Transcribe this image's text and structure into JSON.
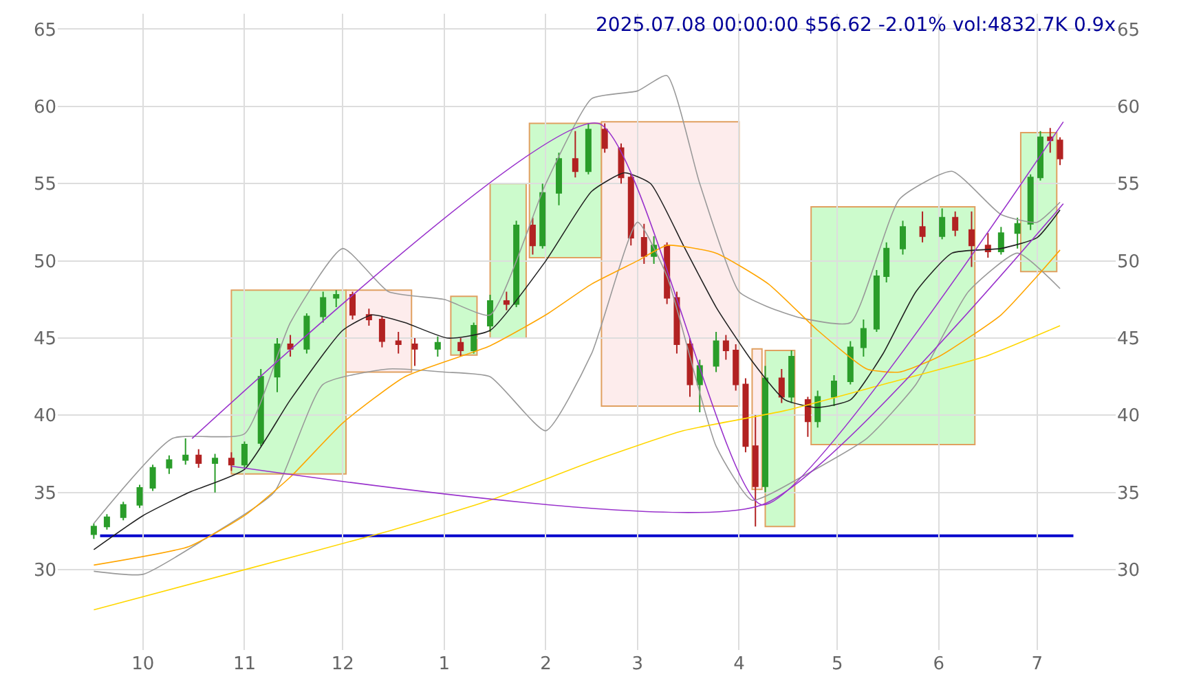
{
  "chart_data": {
    "type": "candlestick",
    "title": "2025.07.08 00:00:00 $56.62 -2.01% vol:4832.7K 0.9x",
    "x": [
      "2024-09-16",
      "2024-09-20",
      "2024-09-25",
      "2024-09-30",
      "2024-10-04",
      "2024-10-09",
      "2024-10-14",
      "2024-10-18",
      "2024-10-23",
      "2024-10-28",
      "2024-11-01",
      "2024-11-06",
      "2024-11-11",
      "2024-11-15",
      "2024-11-20",
      "2024-11-25",
      "2024-11-29",
      "2024-12-04",
      "2024-12-09",
      "2024-12-13",
      "2024-12-18",
      "2024-12-23",
      "2024-12-30",
      "2025-01-06",
      "2025-01-10",
      "2025-01-15",
      "2025-01-20",
      "2025-01-23",
      "2025-01-28",
      "2025-01-31",
      "2025-02-05",
      "2025-02-10",
      "2025-02-14",
      "2025-02-19",
      "2025-02-24",
      "2025-02-27",
      "2025-03-03",
      "2025-03-06",
      "2025-03-10",
      "2025-03-13",
      "2025-03-17",
      "2025-03-20",
      "2025-03-25",
      "2025-03-28",
      "2025-03-31",
      "2025-04-03",
      "2025-04-06",
      "2025-04-09",
      "2025-04-14",
      "2025-04-17",
      "2025-04-22",
      "2025-04-25",
      "2025-04-30",
      "2025-05-05",
      "2025-05-09",
      "2025-05-13",
      "2025-05-16",
      "2025-05-21",
      "2025-05-27",
      "2025-06-02",
      "2025-06-06",
      "2025-06-11",
      "2025-06-16",
      "2025-06-20",
      "2025-06-25",
      "2025-06-29",
      "2025-07-02",
      "2025-07-05",
      "2025-07-08"
    ],
    "ohlc": [
      [
        32.3,
        33.0,
        32.0,
        32.8
      ],
      [
        32.8,
        33.6,
        32.6,
        33.4
      ],
      [
        33.4,
        34.4,
        33.2,
        34.2
      ],
      [
        34.2,
        35.5,
        34.0,
        35.3
      ],
      [
        35.3,
        36.8,
        35.1,
        36.6
      ],
      [
        36.6,
        37.4,
        36.2,
        37.1
      ],
      [
        37.1,
        38.5,
        36.8,
        37.4
      ],
      [
        37.4,
        37.8,
        36.6,
        36.9
      ],
      [
        36.9,
        37.5,
        35.0,
        37.2
      ],
      [
        37.2,
        37.6,
        36.4,
        36.8
      ],
      [
        36.8,
        38.3,
        36.6,
        38.1
      ],
      [
        38.2,
        43.0,
        38.0,
        42.5
      ],
      [
        42.5,
        45.0,
        41.5,
        44.6
      ],
      [
        44.6,
        45.2,
        43.8,
        44.3
      ],
      [
        44.3,
        46.6,
        44.0,
        46.4
      ],
      [
        46.4,
        48.0,
        46.0,
        47.6
      ],
      [
        47.6,
        48.1,
        47.0,
        47.8
      ],
      [
        47.8,
        48.0,
        46.2,
        46.5
      ],
      [
        46.5,
        46.9,
        45.8,
        46.2
      ],
      [
        46.2,
        46.4,
        44.4,
        44.8
      ],
      [
        44.8,
        45.4,
        44.0,
        44.6
      ],
      [
        44.6,
        45.0,
        43.2,
        44.3
      ],
      [
        44.3,
        45.1,
        43.8,
        44.7
      ],
      [
        44.7,
        45.0,
        43.8,
        44.2
      ],
      [
        44.2,
        46.0,
        44.0,
        45.8
      ],
      [
        45.8,
        47.8,
        45.4,
        47.4
      ],
      [
        47.4,
        48.0,
        46.8,
        47.2
      ],
      [
        47.2,
        52.6,
        47.0,
        52.3
      ],
      [
        52.3,
        52.8,
        50.4,
        51.0
      ],
      [
        51.0,
        55.0,
        50.8,
        54.4
      ],
      [
        54.4,
        57.0,
        53.6,
        56.6
      ],
      [
        56.6,
        58.4,
        55.4,
        55.8
      ],
      [
        55.8,
        58.9,
        55.6,
        58.5
      ],
      [
        58.5,
        58.9,
        57.0,
        57.3
      ],
      [
        57.3,
        57.6,
        55.0,
        55.4
      ],
      [
        55.4,
        55.6,
        51.0,
        51.5
      ],
      [
        51.5,
        52.4,
        49.8,
        50.3
      ],
      [
        50.3,
        51.6,
        49.8,
        51.0
      ],
      [
        51.0,
        51.2,
        47.2,
        47.6
      ],
      [
        47.6,
        48.0,
        44.0,
        44.6
      ],
      [
        44.6,
        45.0,
        41.2,
        42.0
      ],
      [
        42.0,
        43.6,
        40.2,
        43.2
      ],
      [
        43.2,
        45.4,
        42.8,
        44.8
      ],
      [
        44.8,
        45.2,
        43.6,
        44.2
      ],
      [
        44.2,
        44.6,
        41.6,
        42.0
      ],
      [
        42.0,
        42.4,
        37.6,
        38.0
      ],
      [
        38.0,
        40.0,
        32.8,
        35.4
      ],
      [
        35.4,
        43.2,
        35.0,
        42.4
      ],
      [
        42.4,
        43.0,
        40.8,
        41.2
      ],
      [
        41.2,
        44.2,
        40.8,
        43.8
      ],
      [
        41.0,
        41.2,
        38.6,
        39.6
      ],
      [
        39.6,
        41.6,
        39.2,
        41.2
      ],
      [
        41.2,
        42.6,
        40.6,
        42.2
      ],
      [
        42.2,
        44.8,
        42.0,
        44.4
      ],
      [
        44.4,
        46.2,
        43.8,
        45.6
      ],
      [
        45.6,
        49.4,
        45.4,
        49.0
      ],
      [
        49.0,
        51.2,
        48.6,
        50.8
      ],
      [
        50.8,
        52.6,
        50.4,
        52.2
      ],
      [
        52.2,
        53.2,
        51.2,
        51.6
      ],
      [
        51.6,
        53.4,
        51.4,
        52.8
      ],
      [
        52.8,
        53.2,
        51.6,
        52.0
      ],
      [
        52.0,
        53.2,
        49.6,
        51.0
      ],
      [
        51.0,
        51.8,
        50.2,
        50.6
      ],
      [
        50.6,
        52.2,
        50.4,
        51.8
      ],
      [
        51.8,
        52.8,
        50.8,
        52.4
      ],
      [
        52.4,
        55.6,
        52.0,
        55.4
      ],
      [
        55.4,
        58.4,
        55.2,
        58.0
      ],
      [
        58.0,
        58.6,
        57.0,
        57.8
      ],
      [
        57.8,
        58.0,
        56.2,
        56.62
      ]
    ],
    "series": [
      {
        "type": "area",
        "color": "#ccfbcc",
        "x": [
          "2024-10-28",
          "2024-10-28",
          "2024-12-02",
          "2024-12-02"
        ],
        "values": [
          36.2,
          48.1,
          48.1,
          36.2
        ]
      },
      {
        "type": "area",
        "color": "#fdecec",
        "x": [
          "2024-12-02",
          "2024-12-02",
          "2024-12-22",
          "2024-12-22"
        ],
        "values": [
          42.8,
          48.1,
          48.1,
          42.8
        ]
      },
      {
        "type": "area",
        "color": "#ccfbcc",
        "x": [
          "2025-01-03",
          "2025-01-03",
          "2025-01-11",
          "2025-01-11"
        ],
        "values": [
          43.9,
          47.7,
          47.7,
          43.9
        ]
      },
      {
        "type": "area",
        "color": "#ccfbcc",
        "x": [
          "2025-01-15",
          "2025-01-15",
          "2025-01-26",
          "2025-01-26"
        ],
        "values": [
          45.0,
          55.0,
          55.0,
          45.0
        ]
      },
      {
        "type": "area",
        "color": "#ccfbcc",
        "x": [
          "2025-01-27",
          "2025-01-27",
          "2025-02-18",
          "2025-02-18"
        ],
        "values": [
          50.2,
          58.9,
          58.9,
          50.2
        ]
      },
      {
        "type": "area",
        "color": "#fdecec",
        "x": [
          "2025-02-18",
          "2025-02-18",
          "2025-04-01",
          "2025-04-01"
        ],
        "values": [
          40.6,
          59.0,
          59.0,
          40.6
        ]
      },
      {
        "type": "area",
        "color": "#fdecec",
        "x": [
          "2025-04-05",
          "2025-04-05",
          "2025-04-08",
          "2025-04-08"
        ],
        "values": [
          35.2,
          44.3,
          44.3,
          35.2
        ]
      },
      {
        "type": "area",
        "color": "#ccfbcc",
        "x": [
          "2025-04-09",
          "2025-04-09",
          "2025-04-18",
          "2025-04-18"
        ],
        "values": [
          32.8,
          44.2,
          44.2,
          32.8
        ]
      },
      {
        "type": "area",
        "color": "#ccfbcc",
        "x": [
          "2025-04-23",
          "2025-04-23",
          "2025-06-12",
          "2025-06-12"
        ],
        "values": [
          38.1,
          53.5,
          53.5,
          38.1
        ]
      },
      {
        "type": "area",
        "color": "#ccfbcc",
        "x": [
          "2025-06-26",
          "2025-06-26",
          "2025-07-07",
          "2025-07-07"
        ],
        "values": [
          49.3,
          58.3,
          58.3,
          49.3
        ]
      },
      {
        "type": "line",
        "color": "#999999",
        "x": [
          "2024-09-16",
          "2024-10-10",
          "2024-11-01",
          "2024-11-15",
          "2024-12-01",
          "2024-12-15",
          "2025-01-01",
          "2025-01-15",
          "2025-02-01",
          "2025-02-15",
          "2025-03-01",
          "2025-03-10",
          "2025-03-20",
          "2025-04-01",
          "2025-04-10",
          "2025-04-20",
          "2025-05-05",
          "2025-05-20",
          "2025-06-05",
          "2025-06-20",
          "2025-07-01",
          "2025-07-08"
        ],
        "values": [
          33.0,
          38.5,
          38.8,
          46.0,
          50.8,
          48.0,
          47.5,
          46.5,
          55.0,
          60.5,
          61.0,
          62.0,
          55.0,
          48.0,
          47.0,
          46.3,
          46.0,
          54.0,
          55.8,
          53.0,
          52.5,
          53.8
        ]
      },
      {
        "type": "line",
        "color": "#999999",
        "x": [
          "2024-09-16",
          "2024-10-01",
          "2024-10-20",
          "2024-11-10",
          "2024-11-25",
          "2024-12-15",
          "2025-01-01",
          "2025-01-15",
          "2025-02-01",
          "2025-02-15",
          "2025-03-01",
          "2025-03-10",
          "2025-03-25",
          "2025-04-05",
          "2025-04-20",
          "2025-05-10",
          "2025-05-25",
          "2025-06-10",
          "2025-06-25",
          "2025-07-08"
        ],
        "values": [
          29.9,
          29.7,
          32.0,
          35.0,
          42.0,
          43.0,
          42.8,
          42.5,
          39.0,
          44.0,
          52.5,
          49.0,
          38.0,
          34.5,
          36.0,
          38.5,
          42.0,
          48.0,
          50.5,
          48.2
        ]
      },
      {
        "type": "line",
        "color": "#222222",
        "x": [
          "2024-09-16",
          "2024-10-01",
          "2024-10-15",
          "2024-11-01",
          "2024-11-15",
          "2024-12-01",
          "2024-12-10",
          "2024-12-20",
          "2025-01-02",
          "2025-01-15",
          "2025-02-01",
          "2025-02-15",
          "2025-02-25",
          "2025-03-05",
          "2025-03-15",
          "2025-03-25",
          "2025-04-05",
          "2025-04-15",
          "2025-04-25",
          "2025-05-05",
          "2025-05-15",
          "2025-05-25",
          "2025-06-05",
          "2025-06-20",
          "2025-07-01",
          "2025-07-08"
        ],
        "values": [
          31.3,
          33.5,
          35.0,
          36.5,
          41.0,
          45.5,
          46.5,
          46.0,
          45.0,
          45.5,
          50.0,
          54.5,
          55.7,
          55.0,
          51.0,
          47.0,
          43.5,
          41.0,
          40.5,
          41.0,
          44.0,
          48.0,
          50.5,
          50.8,
          51.5,
          53.3
        ]
      },
      {
        "type": "line",
        "color": "#ffa500",
        "x": [
          "2024-09-16",
          "2024-10-15",
          "2024-11-01",
          "2024-11-15",
          "2024-12-01",
          "2024-12-20",
          "2025-01-15",
          "2025-02-01",
          "2025-02-15",
          "2025-03-01",
          "2025-03-10",
          "2025-03-25",
          "2025-04-10",
          "2025-04-25",
          "2025-05-10",
          "2025-05-20",
          "2025-06-01",
          "2025-06-20",
          "2025-07-01",
          "2025-07-08"
        ],
        "values": [
          30.3,
          31.5,
          33.5,
          36.0,
          39.5,
          42.5,
          44.5,
          46.5,
          48.5,
          50.0,
          51.0,
          50.5,
          48.5,
          45.5,
          43.0,
          42.8,
          43.8,
          46.5,
          49.0,
          50.7
        ]
      },
      {
        "type": "line",
        "color": "#ffd700",
        "x": [
          "2024-09-16",
          "2024-11-01",
          "2024-12-15",
          "2025-01-15",
          "2025-02-15",
          "2025-03-15",
          "2025-04-15",
          "2025-05-15",
          "2025-06-15",
          "2025-07-08"
        ],
        "values": [
          27.4,
          30.0,
          32.5,
          34.5,
          37.0,
          39.0,
          40.3,
          42.0,
          43.8,
          45.8
        ]
      },
      {
        "type": "line",
        "color": "#9932cc",
        "x": [
          "2024-10-16",
          "2025-02-17",
          "2025-04-08",
          "2025-07-09"
        ],
        "values": [
          38.5,
          58.9,
          34.2,
          59.0
        ]
      },
      {
        "type": "line",
        "color": "#9932cc",
        "x": [
          "2024-10-28",
          "2025-04-08",
          "2025-07-09"
        ],
        "values": [
          36.7,
          34.2,
          53.7
        ]
      }
    ],
    "ref_lines": [
      {
        "axis": "y",
        "value": 32.2,
        "color": "#0000cc"
      }
    ],
    "xlim": [
      "2024-09-05",
      "2025-07-25"
    ],
    "xticks": [
      {
        "value": "2024-10-01",
        "label": "10"
      },
      {
        "value": "2024-11-01",
        "label": "11"
      },
      {
        "value": "2024-12-01",
        "label": "12"
      },
      {
        "value": "2025-01-01",
        "label": "1"
      },
      {
        "value": "2025-02-01",
        "label": "2"
      },
      {
        "value": "2025-03-01",
        "label": "3"
      },
      {
        "value": "2025-04-01",
        "label": "4"
      },
      {
        "value": "2025-05-01",
        "label": "5"
      },
      {
        "value": "2025-06-01",
        "label": "6"
      },
      {
        "value": "2025-07-01",
        "label": "7"
      }
    ],
    "ylim": [
      24.8,
      66
    ],
    "yticks": [
      30,
      35,
      40,
      45,
      50,
      55,
      60,
      65
    ],
    "y2lim": [
      24.8,
      66
    ],
    "y2ticks": [
      30,
      35,
      40,
      45,
      50,
      55,
      60,
      65
    ],
    "grid": true
  }
}
